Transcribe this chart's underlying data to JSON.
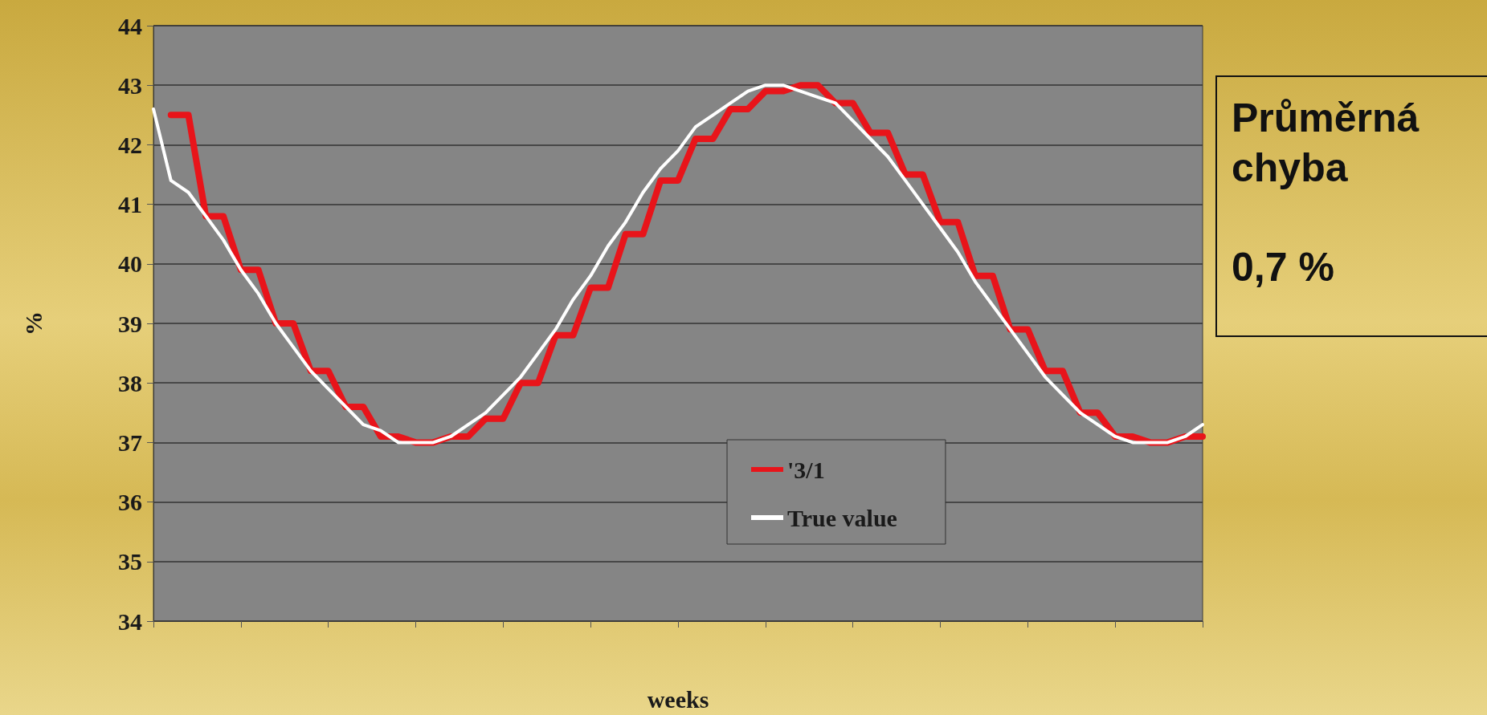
{
  "chart_data": {
    "type": "line",
    "xlabel": "weeks",
    "ylabel": "%",
    "categories": [
      null,
      null,
      null,
      null,
      null,
      null,
      null,
      null,
      null,
      null,
      null,
      null,
      null,
      null,
      null,
      null,
      null,
      null,
      null,
      null,
      null,
      null,
      null,
      null,
      null,
      null,
      null,
      null,
      null,
      null,
      null,
      null,
      null,
      null,
      null,
      null,
      null,
      null,
      null,
      null,
      null,
      null,
      null,
      null,
      null,
      null,
      null,
      null,
      null,
      null,
      null,
      null,
      null,
      null,
      null,
      null,
      null,
      null,
      null,
      null,
      null
    ],
    "series": [
      {
        "name": "'3/1",
        "color": "#e8141a",
        "values": [
          null,
          42.5,
          42.5,
          40.8,
          40.8,
          39.9,
          39.9,
          39.0,
          39.0,
          38.2,
          38.2,
          37.6,
          37.6,
          37.1,
          37.1,
          37.0,
          37.0,
          37.1,
          37.1,
          37.4,
          37.4,
          38.0,
          38.0,
          38.8,
          38.8,
          39.6,
          39.6,
          40.5,
          40.5,
          41.4,
          41.4,
          42.1,
          42.1,
          42.6,
          42.6,
          42.9,
          42.9,
          43.0,
          43.0,
          42.7,
          42.7,
          42.2,
          42.2,
          41.5,
          41.5,
          40.7,
          40.7,
          39.8,
          39.8,
          38.9,
          38.9,
          38.2,
          38.2,
          37.5,
          37.5,
          37.1,
          37.1,
          37.0,
          37.0,
          37.1,
          37.1
        ]
      },
      {
        "name": "True value",
        "color": "#ffffff",
        "values": [
          42.6,
          41.4,
          41.2,
          40.8,
          40.4,
          39.9,
          39.5,
          39.0,
          38.6,
          38.2,
          37.9,
          37.6,
          37.3,
          37.2,
          37.0,
          37.0,
          37.0,
          37.1,
          37.3,
          37.5,
          37.8,
          38.1,
          38.5,
          38.9,
          39.4,
          39.8,
          40.3,
          40.7,
          41.2,
          41.6,
          41.9,
          42.3,
          42.5,
          42.7,
          42.9,
          43.0,
          43.0,
          42.9,
          42.8,
          42.7,
          42.4,
          42.1,
          41.8,
          41.4,
          41.0,
          40.6,
          40.2,
          39.7,
          39.3,
          38.9,
          38.5,
          38.1,
          37.8,
          37.5,
          37.3,
          37.1,
          37.0,
          37.0,
          37.0,
          37.1,
          37.3
        ]
      }
    ],
    "ylim": [
      34,
      44
    ],
    "yticks": [
      34,
      35,
      36,
      37,
      38,
      39,
      40,
      41,
      42,
      43,
      44
    ],
    "grid": "y",
    "legend": "bottom",
    "tick_labels": "y",
    "marker": "none",
    "line_style": "solid",
    "annotations": [
      "Průměrná chyba",
      "0,7 %"
    ]
  }
}
